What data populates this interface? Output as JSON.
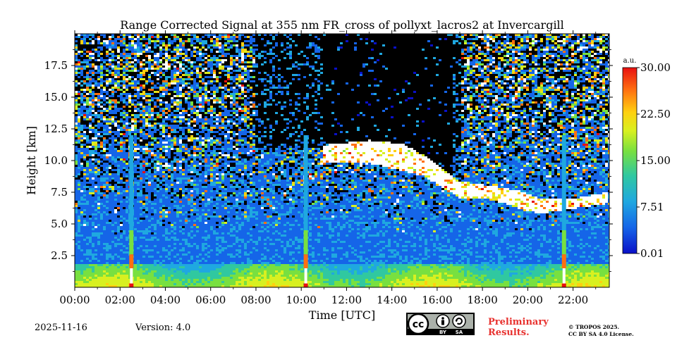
{
  "chart_data": {
    "type": "heatmap",
    "title": "Range Corrected Signal at 355 nm FR_cross of pollyxt_lacros2 at Invercargill",
    "xlabel": "Time [UTC]",
    "ylabel": "Height [km]",
    "xlim": [
      0,
      23.6
    ],
    "ylim": [
      0,
      20
    ],
    "xticks": [
      "00:00",
      "02:00",
      "04:00",
      "06:00",
      "08:00",
      "10:00",
      "12:00",
      "14:00",
      "16:00",
      "18:00",
      "20:00",
      "22:00"
    ],
    "yticks": [
      "2.5",
      "5.0",
      "7.5",
      "10.0",
      "12.5",
      "15.0",
      "17.5"
    ],
    "ytick_values": [
      2.5,
      5.0,
      7.5,
      10.0,
      12.5,
      15.0,
      17.5
    ],
    "colorbar": {
      "label": "a.u.",
      "range": [
        0.01,
        30.0
      ],
      "ticks": [
        "0.01",
        "7.51",
        "15.00",
        "22.50",
        "30.00"
      ],
      "tick_values": [
        0.01,
        7.51,
        15.0,
        22.5,
        30.0
      ],
      "colormap": [
        "#0a10c8",
        "#1565e8",
        "#1fa8e0",
        "#30c8a0",
        "#78e040",
        "#d8f020",
        "#ffd010",
        "#ff7010",
        "#e81010"
      ]
    },
    "features": {
      "boundary_layer_top_km": 1.8,
      "vertical_beams_hours": [
        2.5,
        10.2,
        21.6
      ],
      "cirrus_layer": [
        {
          "t": 11.0,
          "base": 9.8,
          "top": 11.2
        },
        {
          "t": 13.0,
          "base": 9.8,
          "top": 11.6
        },
        {
          "t": 14.5,
          "base": 9.2,
          "top": 11.3
        },
        {
          "t": 15.5,
          "base": 8.7,
          "top": 10.3
        },
        {
          "t": 17.0,
          "base": 7.0,
          "top": 8.3
        },
        {
          "t": 18.5,
          "base": 6.9,
          "top": 8.0
        },
        {
          "t": 19.6,
          "base": 6.2,
          "top": 7.6
        },
        {
          "t": 20.5,
          "base": 5.8,
          "top": 7.0
        },
        {
          "t": 22.0,
          "base": 6.2,
          "top": 7.0
        },
        {
          "t": 23.5,
          "base": 6.6,
          "top": 7.5
        }
      ],
      "clear_sky_window_hours": [
        8.0,
        17.0
      ]
    }
  },
  "footer": {
    "date": "2025-11-16",
    "version": "Version: 4.0",
    "preliminary": "Preliminary\nResults.",
    "copyright_line1": "© TROPOS 2025.",
    "copyright_line2": "CC BY SA 4.0 License.",
    "license_badge": "cc-by-sa-icon"
  }
}
